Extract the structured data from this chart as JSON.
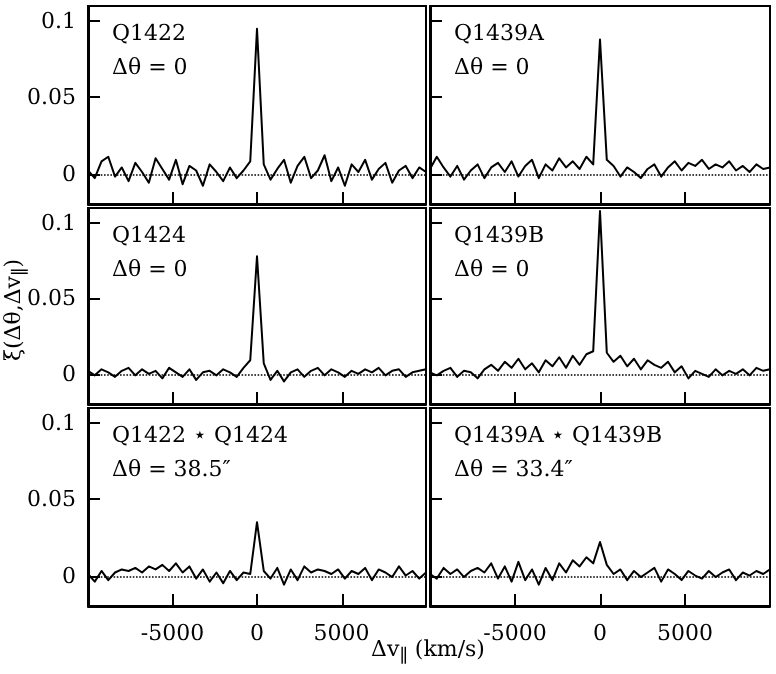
{
  "chart_data": [
    {
      "type": "line",
      "annotations": [
        "Q1422",
        "Δθ = 0"
      ],
      "tick_labels": "y",
      "xlim": [
        -10000,
        10000
      ],
      "xticks": [
        -5000,
        0,
        5000
      ],
      "ylim": [
        -0.02,
        0.11
      ],
      "yticks": [
        0,
        0.05,
        0.1
      ],
      "line_style": "solid",
      "marker": "none",
      "ref_lines": [
        {
          "axis": "y",
          "value": 0,
          "line_style": "dotted"
        }
      ],
      "x": [
        -10000,
        -9600,
        -9200,
        -8800,
        -8400,
        -8000,
        -7600,
        -7200,
        -6800,
        -6400,
        -6000,
        -5600,
        -5200,
        -4800,
        -4400,
        -4000,
        -3600,
        -3200,
        -2800,
        -2400,
        -2000,
        -1600,
        -1200,
        -800,
        -400,
        0,
        400,
        800,
        1200,
        1600,
        2000,
        2400,
        2800,
        3200,
        3600,
        4000,
        4400,
        4800,
        5200,
        5600,
        6000,
        6400,
        6800,
        7200,
        7600,
        8000,
        8400,
        8800,
        9200,
        9600,
        10000
      ],
      "series": [
        {
          "color": "#000000",
          "values": [
            0.002,
            -0.003,
            0.008,
            0.011,
            -0.002,
            0.004,
            -0.005,
            0.007,
            0.001,
            -0.006,
            0.01,
            0.003,
            -0.004,
            0.009,
            -0.007,
            0.005,
            0.002,
            -0.008,
            0.006,
            0.001,
            -0.005,
            0.004,
            -0.003,
            0.002,
            0.008,
            0.095,
            0.006,
            -0.004,
            0.003,
            0.009,
            -0.006,
            0.005,
            0.011,
            -0.003,
            0.002,
            0.012,
            -0.005,
            0.004,
            -0.008,
            0.006,
            0.001,
            0.009,
            -0.004,
            0.003,
            0.007,
            -0.006,
            0.002,
            0.005,
            -0.003,
            0.004,
            0.001
          ]
        }
      ]
    },
    {
      "type": "line",
      "annotations": [
        "Q1439A",
        "Δθ = 0"
      ],
      "tick_labels": false,
      "xlim": [
        -10000,
        10000
      ],
      "xticks": [
        -5000,
        0,
        5000
      ],
      "ylim": [
        -0.02,
        0.11
      ],
      "yticks": [
        0,
        0.05,
        0.1
      ],
      "line_style": "solid",
      "marker": "none",
      "ref_lines": [
        {
          "axis": "y",
          "value": 0,
          "line_style": "dotted"
        }
      ],
      "x": [
        -10000,
        -9600,
        -9200,
        -8800,
        -8400,
        -8000,
        -7600,
        -7200,
        -6800,
        -6400,
        -6000,
        -5600,
        -5200,
        -4800,
        -4400,
        -4000,
        -3600,
        -3200,
        -2800,
        -2400,
        -2000,
        -1600,
        -1200,
        -800,
        -400,
        0,
        400,
        800,
        1200,
        1600,
        2000,
        2400,
        2800,
        3200,
        3600,
        4000,
        4400,
        4800,
        5200,
        5600,
        6000,
        6400,
        6800,
        7200,
        7600,
        8000,
        8400,
        8800,
        9200,
        9600,
        10000
      ],
      "series": [
        {
          "color": "#000000",
          "values": [
            0.003,
            0.011,
            0.004,
            -0.002,
            0.005,
            -0.004,
            0.002,
            0.006,
            -0.003,
            0.004,
            0.007,
            0.001,
            0.008,
            -0.002,
            0.005,
            0.009,
            -0.003,
            0.006,
            0.002,
            0.01,
            0.004,
            0.008,
            0.003,
            0.011,
            0.006,
            0.088,
            0.009,
            0.005,
            -0.002,
            0.004,
            0.001,
            -0.003,
            0.003,
            0.006,
            -0.002,
            0.004,
            0.008,
            0.002,
            0.007,
            0.005,
            0.009,
            0.003,
            0.006,
            0.004,
            0.008,
            0.002,
            0.005,
            0.001,
            0.006,
            0.003,
            0.004
          ]
        }
      ]
    },
    {
      "type": "line",
      "annotations": [
        "Q1424",
        "Δθ = 0"
      ],
      "ylabel": "ξ(Δθ,Δv$_{∥}$)",
      "tick_labels": "y",
      "xlim": [
        -10000,
        10000
      ],
      "xticks": [
        -5000,
        0,
        5000
      ],
      "ylim": [
        -0.02,
        0.11
      ],
      "yticks": [
        0,
        0.05,
        0.1
      ],
      "line_style": "solid",
      "marker": "none",
      "ref_lines": [
        {
          "axis": "y",
          "value": 0,
          "line_style": "dotted"
        }
      ],
      "x": [
        -10000,
        -9600,
        -9200,
        -8800,
        -8400,
        -8000,
        -7600,
        -7200,
        -6800,
        -6400,
        -6000,
        -5600,
        -5200,
        -4800,
        -4400,
        -4000,
        -3600,
        -3200,
        -2800,
        -2400,
        -2000,
        -1600,
        -1200,
        -800,
        -400,
        0,
        400,
        800,
        1200,
        1600,
        2000,
        2400,
        2800,
        3200,
        3600,
        4000,
        4400,
        4800,
        5200,
        5600,
        6000,
        6400,
        6800,
        7200,
        7600,
        8000,
        8400,
        8800,
        9200,
        9600,
        10000
      ],
      "series": [
        {
          "color": "#000000",
          "values": [
            0.002,
            -0.001,
            0.003,
            0.001,
            -0.002,
            0.002,
            0.004,
            -0.001,
            0.003,
            0.0,
            0.002,
            -0.003,
            0.004,
            0.001,
            -0.002,
            0.003,
            -0.004,
            0.001,
            0.002,
            -0.001,
            0.003,
            0.001,
            -0.002,
            0.004,
            0.009,
            0.078,
            0.007,
            -0.004,
            0.002,
            -0.005,
            0.001,
            0.003,
            -0.002,
            0.002,
            0.004,
            -0.001,
            0.003,
            0.001,
            -0.002,
            0.002,
            0.0,
            0.003,
            0.001,
            0.004,
            -0.001,
            0.002,
            0.003,
            -0.002,
            0.001,
            0.002,
            0.003
          ]
        }
      ]
    },
    {
      "type": "line",
      "annotations": [
        "Q1439B",
        "Δθ = 0"
      ],
      "tick_labels": false,
      "xlim": [
        -10000,
        10000
      ],
      "xticks": [
        -5000,
        0,
        5000
      ],
      "ylim": [
        -0.02,
        0.11
      ],
      "yticks": [
        0,
        0.05,
        0.1
      ],
      "line_style": "solid",
      "marker": "none",
      "ref_lines": [
        {
          "axis": "y",
          "value": 0,
          "line_style": "dotted"
        }
      ],
      "x": [
        -10000,
        -9600,
        -9200,
        -8800,
        -8400,
        -8000,
        -7600,
        -7200,
        -6800,
        -6400,
        -6000,
        -5600,
        -5200,
        -4800,
        -4400,
        -4000,
        -3600,
        -3200,
        -2800,
        -2400,
        -2000,
        -1600,
        -1200,
        -800,
        -400,
        0,
        400,
        800,
        1200,
        1600,
        2000,
        2400,
        2800,
        3200,
        3600,
        4000,
        4400,
        4800,
        5200,
        5600,
        6000,
        6400,
        6800,
        7200,
        7600,
        8000,
        8400,
        8800,
        9200,
        9600,
        10000
      ],
      "series": [
        {
          "color": "#000000",
          "values": [
            0.001,
            -0.001,
            0.002,
            0.004,
            -0.002,
            0.002,
            0.001,
            -0.003,
            0.003,
            0.006,
            0.002,
            0.008,
            0.004,
            0.01,
            0.003,
            0.007,
            0.001,
            0.009,
            0.005,
            0.011,
            0.004,
            0.012,
            0.006,
            0.013,
            0.015,
            0.108,
            0.014,
            0.008,
            0.012,
            0.005,
            0.01,
            0.003,
            0.009,
            0.006,
            0.004,
            0.008,
            0.001,
            0.005,
            -0.003,
            0.002,
            0.0,
            -0.002,
            0.003,
            -0.001,
            0.002,
            0.0,
            0.003,
            -0.001,
            0.004,
            0.002,
            0.003
          ]
        }
      ]
    },
    {
      "type": "line",
      "annotations": [
        "Q1422 ⋆ Q1424",
        "Δθ = 38.5″"
      ],
      "xlabel": "Δv$_{∥}$ (km/s)",
      "xlim": [
        -10000,
        10000
      ],
      "xticks": [
        -5000,
        0,
        5000
      ],
      "ylim": [
        -0.02,
        0.11
      ],
      "yticks": [
        0,
        0.05,
        0.1
      ],
      "line_style": "solid",
      "marker": "none",
      "ref_lines": [
        {
          "axis": "y",
          "value": 0,
          "line_style": "dotted"
        }
      ],
      "x": [
        -10000,
        -9600,
        -9200,
        -8800,
        -8400,
        -8000,
        -7600,
        -7200,
        -6800,
        -6400,
        -6000,
        -5600,
        -5200,
        -4800,
        -4400,
        -4000,
        -3600,
        -3200,
        -2800,
        -2400,
        -2000,
        -1600,
        -1200,
        -800,
        -400,
        0,
        400,
        800,
        1200,
        1600,
        2000,
        2400,
        2800,
        3200,
        3600,
        4000,
        4400,
        4800,
        5200,
        5600,
        6000,
        6400,
        6800,
        7200,
        7600,
        8000,
        8400,
        8800,
        9200,
        9600,
        10000
      ],
      "series": [
        {
          "color": "#000000",
          "values": [
            0.001,
            -0.004,
            0.003,
            -0.003,
            0.002,
            0.004,
            0.003,
            0.005,
            0.002,
            0.006,
            0.004,
            0.007,
            0.003,
            0.008,
            0.002,
            0.006,
            -0.002,
            0.004,
            -0.004,
            0.002,
            -0.005,
            0.003,
            -0.003,
            0.002,
            0.001,
            0.035,
            0.003,
            -0.002,
            0.005,
            -0.006,
            0.004,
            -0.003,
            0.006,
            0.002,
            0.004,
            0.003,
            0.001,
            0.004,
            -0.002,
            0.003,
            0.001,
            0.005,
            -0.003,
            0.004,
            0.002,
            -0.001,
            0.006,
            0.0,
            0.003,
            -0.002,
            0.002
          ]
        }
      ]
    },
    {
      "type": "line",
      "annotations": [
        "Q1439A ⋆ Q1439B",
        "Δθ = 33.4″"
      ],
      "tick_labels": "x",
      "xlim": [
        -10000,
        10000
      ],
      "xticks": [
        -5000,
        0,
        5000
      ],
      "ylim": [
        -0.02,
        0.11
      ],
      "yticks": [
        0,
        0.05,
        0.1
      ],
      "line_style": "solid",
      "marker": "none",
      "ref_lines": [
        {
          "axis": "y",
          "value": 0,
          "line_style": "dotted"
        }
      ],
      "x": [
        -10000,
        -9600,
        -9200,
        -8800,
        -8400,
        -8000,
        -7600,
        -7200,
        -6800,
        -6400,
        -6000,
        -5600,
        -5200,
        -4800,
        -4400,
        -4000,
        -3600,
        -3200,
        -2800,
        -2400,
        -2000,
        -1600,
        -1200,
        -800,
        -400,
        0,
        400,
        800,
        1200,
        1600,
        2000,
        2400,
        2800,
        3200,
        3600,
        4000,
        4400,
        4800,
        5200,
        5600,
        6000,
        6400,
        6800,
        7200,
        7600,
        8000,
        8400,
        8800,
        9200,
        9600,
        10000
      ],
      "series": [
        {
          "color": "#000000",
          "values": [
            0.001,
            -0.002,
            0.005,
            0.001,
            0.004,
            -0.001,
            0.003,
            0.005,
            0.002,
            0.008,
            -0.002,
            0.006,
            -0.004,
            0.009,
            -0.003,
            0.004,
            -0.006,
            0.005,
            -0.003,
            0.008,
            0.002,
            0.01,
            0.006,
            0.012,
            0.008,
            0.022,
            0.007,
            0.001,
            0.004,
            -0.003,
            0.003,
            -0.001,
            0.002,
            0.005,
            -0.004,
            0.004,
            0.001,
            -0.003,
            0.003,
            0.0,
            -0.002,
            0.003,
            -0.001,
            0.002,
            0.004,
            -0.003,
            0.002,
            0.0,
            0.003,
            0.001,
            0.004
          ]
        }
      ]
    }
  ]
}
